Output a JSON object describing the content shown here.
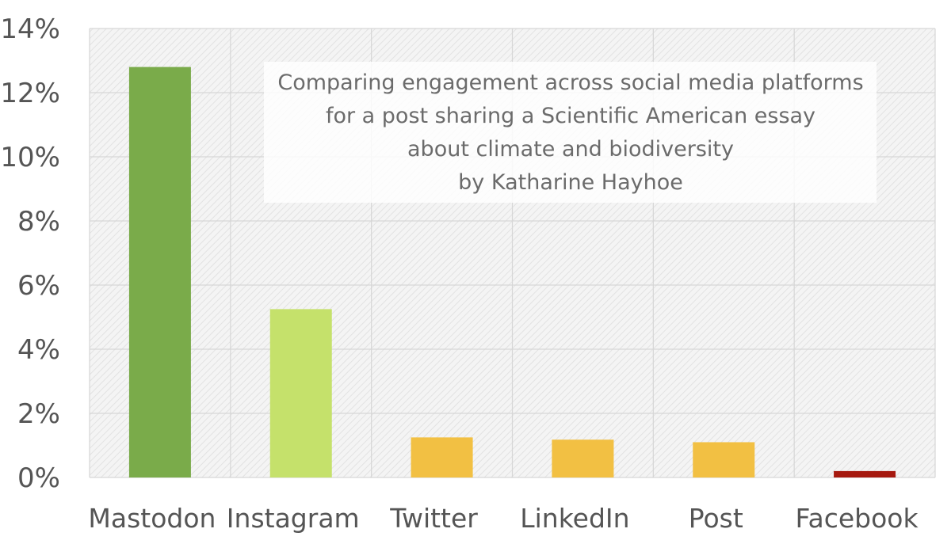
{
  "chart_data": {
    "type": "bar",
    "title_lines": [
      "Comparing engagement across social media platforms",
      "for a post sharing a Scientific American essay",
      "about climate and biodiversity",
      "by Katharine Hayhoe"
    ],
    "xlabel": "",
    "ylabel": "",
    "categories": [
      "Mastodon",
      "Instagram",
      "Twitter",
      "LinkedIn",
      "Post",
      "Facebook"
    ],
    "values": [
      12.8,
      5.25,
      1.25,
      1.18,
      1.1,
      0.2
    ],
    "value_unit": "%",
    "ylim": [
      0,
      14
    ],
    "yticks": [
      "0%",
      "2%",
      "4%",
      "6%",
      "8%",
      "10%",
      "12%",
      "14%"
    ],
    "ytick_values": [
      0,
      2,
      4,
      6,
      8,
      10,
      12,
      14
    ],
    "bar_colors": [
      "#7aab4a",
      "#c5e16b",
      "#f2c043",
      "#f2c043",
      "#f2c043",
      "#a6190f"
    ],
    "grid": true,
    "plot_background": "#ececec",
    "legend": "none"
  }
}
